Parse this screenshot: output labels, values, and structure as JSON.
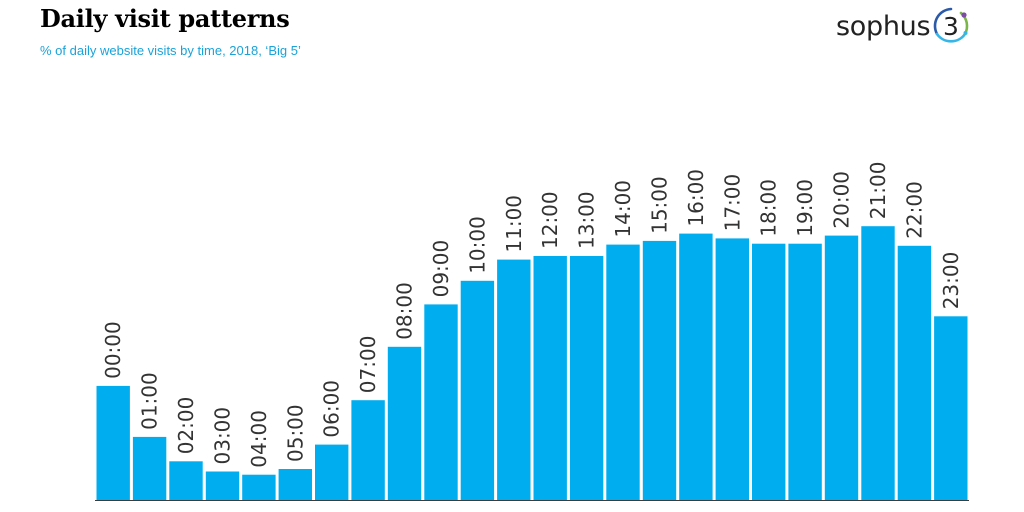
{
  "header": {
    "title": "Daily visit patterns",
    "subtitle": "% of daily website visits by time, 2018, ‘Big 5’"
  },
  "logo": {
    "text": "sophus",
    "numeral": "3"
  },
  "colors": {
    "bar": "#00aeef",
    "axis": "#3c3c3c",
    "label": "#333333",
    "subtitle": "#1aa3d9",
    "logo_ring_dark": "#2a5aa8",
    "logo_ring_light": "#35b6e6",
    "logo_ring_green": "#7ab648",
    "logo_dot": "#7b4ea3"
  },
  "chart_data": {
    "type": "bar",
    "categories": [
      "00:00",
      "01:00",
      "02:00",
      "03:00",
      "04:00",
      "05:00",
      "06:00",
      "07:00",
      "08:00",
      "09:00",
      "10:00",
      "11:00",
      "12:00",
      "13:00",
      "14:00",
      "15:00",
      "16:00",
      "17:00",
      "18:00",
      "19:00",
      "20:00",
      "21:00",
      "22:00",
      "23:00"
    ],
    "values": [
      2.8,
      1.55,
      0.95,
      0.7,
      0.62,
      0.76,
      1.36,
      2.45,
      3.76,
      4.8,
      5.38,
      5.9,
      5.99,
      5.99,
      6.27,
      6.36,
      6.54,
      6.42,
      6.29,
      6.29,
      6.49,
      6.72,
      6.24,
      4.51
    ],
    "title": "Daily visit patterns",
    "subtitle": "% of daily website visits by time, 2018, ‘Big 5’",
    "xlabel": "",
    "ylabel": "",
    "ylim": [
      0,
      10.8
    ],
    "grid": false,
    "legend": "none",
    "bar_labels": "category-rotated"
  }
}
